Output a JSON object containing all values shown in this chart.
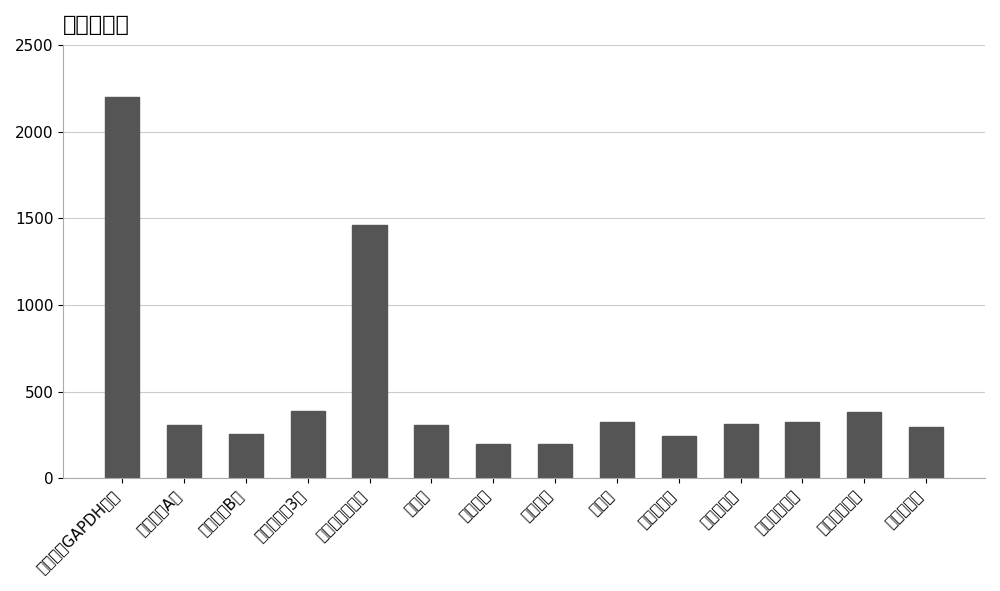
{
  "categories": [
    "人的内参GAPDH基因",
    "流感病毒A型",
    "流感病毒B型",
    "副流感病毒3型",
    "呼吸道合胞病毒",
    "鼻病毒",
    "偏肺病毒",
    "博卡病毒",
    "腺病毒",
    "肺炎链球菌",
    "肺炎支原体",
    "卡他布兰汉菌",
    "流感嗜血杆菌",
    "百日咳杆菌"
  ],
  "values": [
    2200,
    310,
    255,
    390,
    1460,
    305,
    195,
    200,
    325,
    245,
    315,
    325,
    380,
    295
  ],
  "bar_color": "#555555",
  "title": "探针信号值",
  "ylabel": "",
  "ylim": [
    0,
    2500
  ],
  "yticks": [
    0,
    500,
    1000,
    1500,
    2000,
    2500
  ],
  "title_fontsize": 16,
  "tick_fontsize": 11,
  "background_color": "#ffffff",
  "grid_color": "#cccccc",
  "border_color": "#aaaaaa"
}
